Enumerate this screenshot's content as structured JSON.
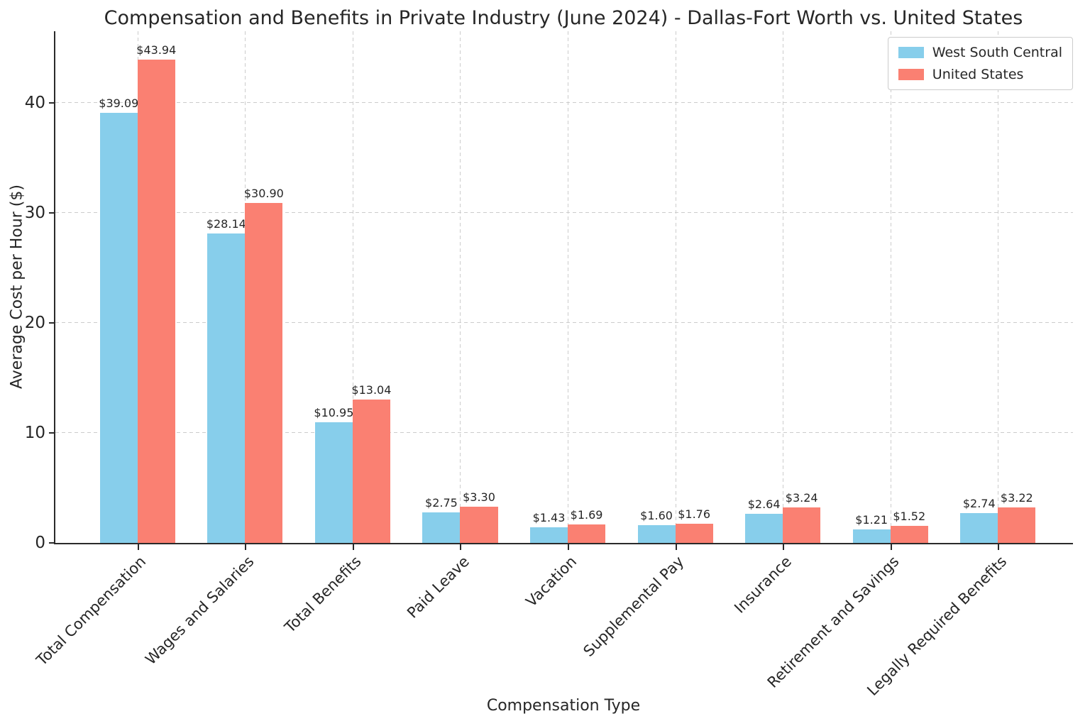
{
  "title": "Compensation and Benefits in Private Industry (June 2024) - Dallas-Fort Worth vs. United States",
  "colors": {
    "series_1": "#87CEEB",
    "series_2": "#FA8072",
    "grid": "#cccccc",
    "spine": "#2a2a2a",
    "text": "#262626"
  },
  "chart_data": {
    "type": "bar",
    "title": "Compensation and Benefits in Private Industry (June 2024) - Dallas-Fort Worth vs. United States",
    "xlabel": "Compensation Type",
    "ylabel": "Average Cost per Hour ($)",
    "categories": [
      "Total Compensation",
      "Wages and Salaries",
      "Total Benefits",
      "Paid Leave",
      "Vacation",
      "Supplemental Pay",
      "Insurance",
      "Retirement and Savings",
      "Legally Required Benefits"
    ],
    "series": [
      {
        "name": "West South Central",
        "color": "#87CEEB",
        "values": [
          39.09,
          28.14,
          10.95,
          2.75,
          1.43,
          1.6,
          2.64,
          1.21,
          2.74
        ],
        "labels": [
          "$39.09",
          "$28.14",
          "$10.95",
          "$2.75",
          "$1.43",
          "$1.60",
          "$2.64",
          "$1.21",
          "$2.74"
        ]
      },
      {
        "name": "United States",
        "color": "#FA8072",
        "values": [
          43.94,
          30.9,
          13.04,
          3.3,
          1.69,
          1.76,
          3.24,
          1.52,
          3.22
        ],
        "labels": [
          "$43.94",
          "$30.90",
          "$13.04",
          "$3.30",
          "$1.69",
          "$1.76",
          "$3.24",
          "$1.52",
          "$3.22"
        ]
      }
    ],
    "value_label_prefix": "$",
    "yticks": [
      0,
      10,
      20,
      30,
      40
    ],
    "ylim": [
      0,
      46.5
    ],
    "grid": true,
    "grid_style": "dashed",
    "legend_position": "upper right",
    "legend_entries": [
      "West South Central",
      "United States"
    ]
  }
}
